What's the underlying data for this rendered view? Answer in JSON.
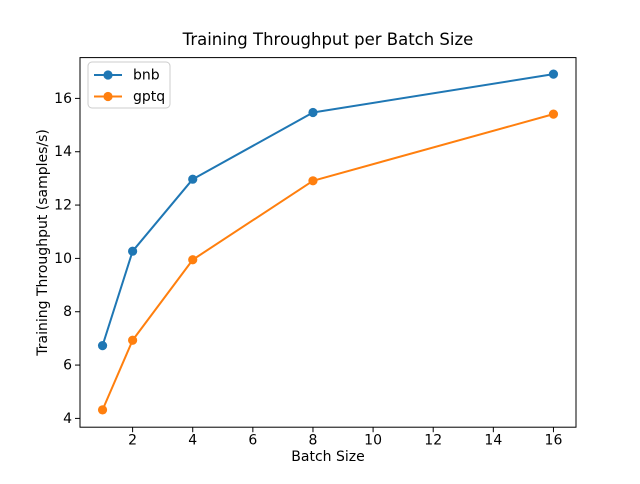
{
  "figure": {
    "background": "#ffffff"
  },
  "chart_data": {
    "type": "line",
    "title": "Training Throughput per Batch Size",
    "xlabel": "Batch Size",
    "ylabel": "Training Throughput (samples/s)",
    "x": [
      1,
      2,
      4,
      8,
      16
    ],
    "series": [
      {
        "name": "bnb",
        "color": "#1f77b4",
        "marker": "circle",
        "values": [
          6.73,
          10.27,
          12.97,
          15.47,
          16.91
        ]
      },
      {
        "name": "gptq",
        "color": "#ff7f0e",
        "marker": "circle",
        "values": [
          4.32,
          6.93,
          9.95,
          12.91,
          15.41
        ]
      }
    ],
    "xlim": [
      0.25,
      16.75
    ],
    "ylim": [
      3.67,
      17.53
    ],
    "xticks": [
      2,
      4,
      6,
      8,
      10,
      12,
      14,
      16
    ],
    "yticks": [
      4,
      6,
      8,
      10,
      12,
      14,
      16
    ],
    "grid": false,
    "legend": {
      "position": "upper-left",
      "entries": [
        "bnb",
        "gptq"
      ]
    },
    "axes_color": "#000000",
    "legend_edge_color": "#cccccc",
    "background": "#ffffff"
  }
}
